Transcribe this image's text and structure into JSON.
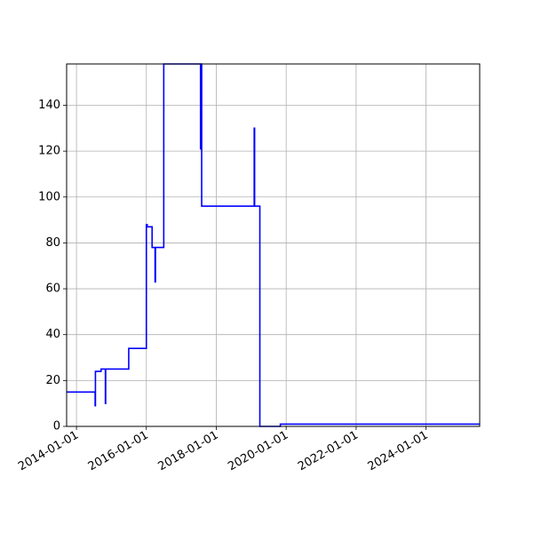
{
  "chart_data": {
    "type": "line",
    "title": "",
    "xlabel": "",
    "ylabel": "",
    "x_axis": "date",
    "xlim": [
      "2013-09-20",
      "2025-07-15"
    ],
    "ylim": [
      0,
      158
    ],
    "grid": true,
    "x_ticks": [
      "2014-01-01",
      "2016-01-01",
      "2018-01-01",
      "2020-01-01",
      "2022-01-01",
      "2024-01-01"
    ],
    "y_ticks": [
      0,
      20,
      40,
      60,
      80,
      100,
      120,
      140
    ],
    "line_color": "#0000ff",
    "series": [
      {
        "step": "post",
        "points": [
          [
            "2013-09-20",
            15
          ],
          [
            "2014-07-15",
            9
          ],
          [
            "2014-07-18",
            24
          ],
          [
            "2014-09-15",
            25
          ],
          [
            "2014-10-30",
            10
          ],
          [
            "2014-11-02",
            25
          ],
          [
            "2015-07-01",
            34
          ],
          [
            "2016-01-01",
            88
          ],
          [
            "2016-01-10",
            87
          ],
          [
            "2016-03-01",
            78
          ],
          [
            "2016-04-01",
            63
          ],
          [
            "2016-04-05",
            78
          ],
          [
            "2016-07-01",
            158
          ],
          [
            "2017-07-20",
            121
          ],
          [
            "2017-07-25",
            158
          ],
          [
            "2017-08-01",
            96
          ],
          [
            "2019-02-01",
            130
          ],
          [
            "2019-02-05",
            96
          ],
          [
            "2019-04-01",
            0
          ],
          [
            "2019-11-01",
            1
          ],
          [
            "2025-07-15",
            1
          ]
        ]
      }
    ]
  }
}
